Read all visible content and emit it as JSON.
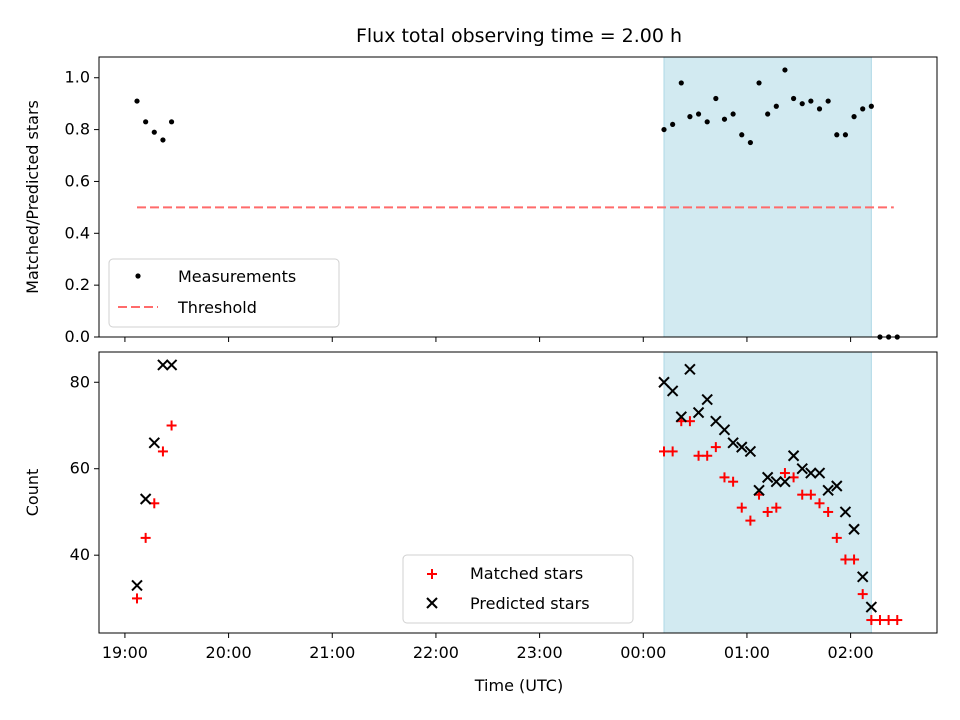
{
  "chart_data": {
    "type": "scatter",
    "title": "Flux total observing time = 2.00 h",
    "xlabel": "Time (UTC)",
    "x_ticks": [
      "19:00",
      "20:00",
      "21:00",
      "22:00",
      "23:00",
      "00:00",
      "01:00",
      "02:00"
    ],
    "x_range": [
      "18:45",
      "02:50"
    ],
    "observing_window": [
      "00:12",
      "02:12"
    ],
    "colors": {
      "window": "#add8e6",
      "measurements": "#000000",
      "threshold": "#ff6b6b",
      "matched": "#ff0000",
      "predicted": "#000000"
    },
    "panels": [
      {
        "ylabel": "Matched/Predicted stars",
        "ylim": [
          0,
          1.08
        ],
        "yticks": [
          "0.0",
          "0.2",
          "0.4",
          "0.6",
          "0.8",
          "1.0"
        ],
        "legend_position": "lower-left",
        "legend": [
          "Measurements",
          "Threshold"
        ],
        "threshold": {
          "value": 0.5,
          "x_start": "19:07",
          "x_end": "02:25"
        },
        "measurements": [
          [
            "19:07",
            0.91
          ],
          [
            "19:12",
            0.83
          ],
          [
            "19:17",
            0.79
          ],
          [
            "19:22",
            0.76
          ],
          [
            "19:27",
            0.83
          ],
          [
            "00:12",
            0.8
          ],
          [
            "00:17",
            0.82
          ],
          [
            "00:22",
            0.98
          ],
          [
            "00:27",
            0.85
          ],
          [
            "00:32",
            0.86
          ],
          [
            "00:37",
            0.83
          ],
          [
            "00:42",
            0.92
          ],
          [
            "00:47",
            0.84
          ],
          [
            "00:52",
            0.86
          ],
          [
            "00:57",
            0.78
          ],
          [
            "01:02",
            0.75
          ],
          [
            "01:07",
            0.98
          ],
          [
            "01:12",
            0.86
          ],
          [
            "01:17",
            0.89
          ],
          [
            "01:22",
            1.03
          ],
          [
            "01:27",
            0.92
          ],
          [
            "01:32",
            0.9
          ],
          [
            "01:37",
            0.91
          ],
          [
            "01:42",
            0.88
          ],
          [
            "01:47",
            0.91
          ],
          [
            "01:52",
            0.78
          ],
          [
            "01:57",
            0.78
          ],
          [
            "02:02",
            0.85
          ],
          [
            "02:07",
            0.88
          ],
          [
            "02:12",
            0.89
          ],
          [
            "02:17",
            0.0
          ],
          [
            "02:22",
            0.0
          ],
          [
            "02:27",
            0.0
          ]
        ]
      },
      {
        "ylabel": "Count",
        "ylim": [
          22,
          87
        ],
        "yticks": [
          "40",
          "60",
          "80"
        ],
        "legend_position": "lower-center",
        "legend": [
          "Matched stars",
          "Predicted stars"
        ],
        "matched": [
          [
            "19:07",
            30
          ],
          [
            "19:12",
            44
          ],
          [
            "19:17",
            52
          ],
          [
            "19:22",
            64
          ],
          [
            "19:27",
            70
          ],
          [
            "00:12",
            64
          ],
          [
            "00:17",
            64
          ],
          [
            "00:22",
            71
          ],
          [
            "00:27",
            71
          ],
          [
            "00:32",
            63
          ],
          [
            "00:37",
            63
          ],
          [
            "00:42",
            65
          ],
          [
            "00:47",
            58
          ],
          [
            "00:52",
            57
          ],
          [
            "00:57",
            51
          ],
          [
            "01:02",
            48
          ],
          [
            "01:07",
            54
          ],
          [
            "01:12",
            50
          ],
          [
            "01:17",
            51
          ],
          [
            "01:22",
            59
          ],
          [
            "01:27",
            58
          ],
          [
            "01:32",
            54
          ],
          [
            "01:37",
            54
          ],
          [
            "01:42",
            52
          ],
          [
            "01:47",
            50
          ],
          [
            "01:52",
            44
          ],
          [
            "01:57",
            39
          ],
          [
            "02:02",
            39
          ],
          [
            "02:07",
            31
          ],
          [
            "02:12",
            25
          ],
          [
            "02:17",
            25
          ],
          [
            "02:22",
            25
          ],
          [
            "02:27",
            25
          ]
        ],
        "predicted": [
          [
            "19:07",
            33
          ],
          [
            "19:12",
            53
          ],
          [
            "19:17",
            66
          ],
          [
            "19:22",
            84
          ],
          [
            "19:27",
            84
          ],
          [
            "00:12",
            80
          ],
          [
            "00:17",
            78
          ],
          [
            "00:22",
            72
          ],
          [
            "00:27",
            83
          ],
          [
            "00:32",
            73
          ],
          [
            "00:37",
            76
          ],
          [
            "00:42",
            71
          ],
          [
            "00:47",
            69
          ],
          [
            "00:52",
            66
          ],
          [
            "00:57",
            65
          ],
          [
            "01:02",
            64
          ],
          [
            "01:07",
            55
          ],
          [
            "01:12",
            58
          ],
          [
            "01:17",
            57
          ],
          [
            "01:22",
            57
          ],
          [
            "01:27",
            63
          ],
          [
            "01:32",
            60
          ],
          [
            "01:37",
            59
          ],
          [
            "01:42",
            59
          ],
          [
            "01:47",
            55
          ],
          [
            "01:52",
            56
          ],
          [
            "01:57",
            50
          ],
          [
            "02:02",
            46
          ],
          [
            "02:07",
            35
          ],
          [
            "02:12",
            28
          ]
        ]
      }
    ]
  }
}
